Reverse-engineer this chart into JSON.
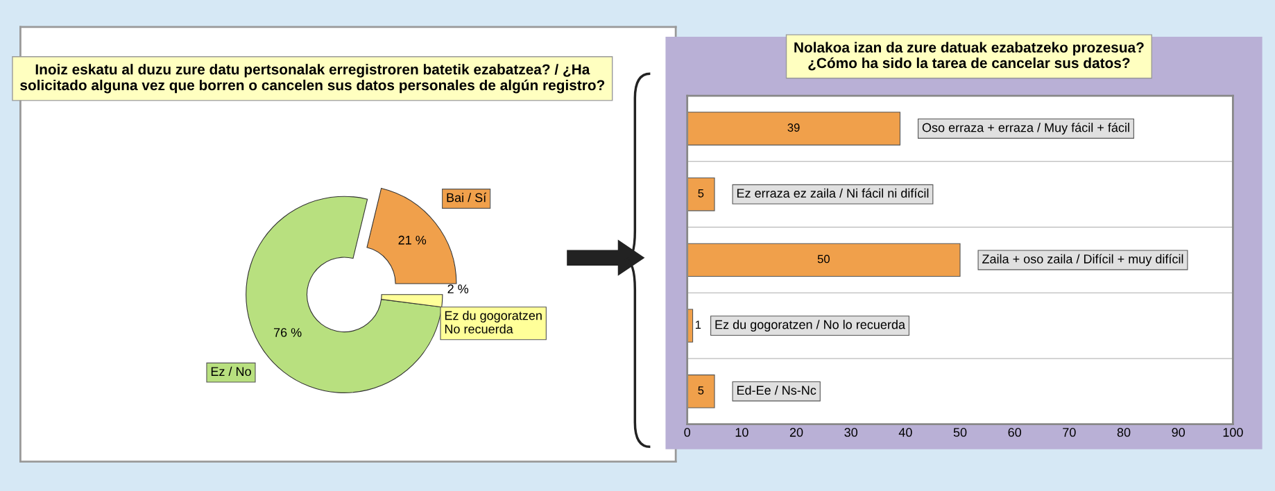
{
  "chart_data": [
    {
      "type": "donut",
      "title": "Inoiz eskatu al duzu zure datu pertsonalak erregistroren batetik ezabatzea? / ¿Ha solicitado alguna vez que borren o cancelen sus datos personales de algún registro?",
      "categories": [
        "Bai / Sí",
        "Ez / No",
        "Ez du gogoratzen\nNo recuerda"
      ],
      "values": [
        21,
        76,
        2
      ],
      "colors": [
        "#f0a04b",
        "#b8e07f",
        "#ffff99"
      ],
      "value_labels": [
        "21 %",
        "76 %",
        "2 %"
      ]
    },
    {
      "type": "bar",
      "orientation": "horizontal",
      "title": "Nolakoa izan da zure datuak ezabatzeko prozesua?\n¿Cómo ha sido la tarea de cancelar sus datos?",
      "categories": [
        "Oso erraza + erraza / Muy fácil + fácil",
        "Ez erraza ez zaila / Ni fácil ni difícil",
        "Zaila + oso zaila / Difícil + muy difícil",
        "Ez du gogoratzen / No lo recuerda",
        "Ed-Ee / Ns-Nc"
      ],
      "values": [
        39,
        5,
        50,
        1,
        5
      ],
      "color": "#f0a04b",
      "data_labels": true,
      "xlim": [
        0,
        100
      ],
      "xticks": [
        0,
        10,
        20,
        30,
        40,
        50,
        60,
        70,
        80,
        90,
        100
      ],
      "grid": "y"
    }
  ]
}
